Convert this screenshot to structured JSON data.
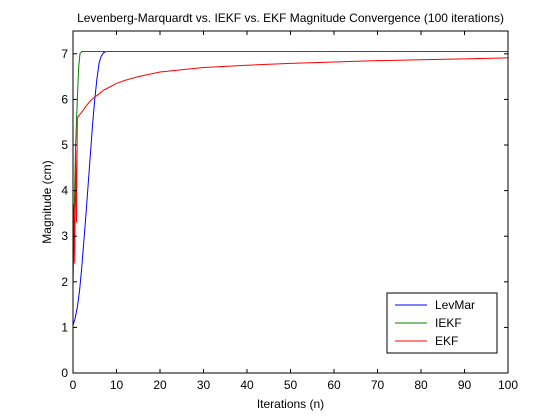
{
  "chart_data": {
    "type": "line",
    "title": "Levenberg-Marquardt vs. IEKF vs. EKF Magnitude Convergence (100 iterations)",
    "xlabel": "Iterations (n)",
    "ylabel": "Magnitude (cm)",
    "xlim": [
      0,
      100
    ],
    "ylim": [
      0,
      7.5
    ],
    "xticks": [
      0,
      10,
      20,
      30,
      40,
      50,
      60,
      70,
      80,
      90,
      100
    ],
    "yticks": [
      0,
      1,
      2,
      3,
      4,
      5,
      6,
      7
    ],
    "grid": false,
    "legend_position": "bottom-right",
    "series": [
      {
        "name": "LevMar",
        "color": "#0000ff",
        "x": [
          0,
          0.5,
          1,
          1.5,
          2,
          2.5,
          3,
          3.5,
          4,
          4.5,
          5,
          5.5,
          6,
          6.5,
          7,
          7.5,
          8,
          100
        ],
        "y": [
          1.05,
          1.2,
          1.45,
          1.8,
          2.3,
          2.9,
          3.5,
          4.15,
          4.8,
          5.45,
          6.0,
          6.45,
          6.8,
          6.95,
          7.02,
          7.05,
          7.05,
          7.05
        ]
      },
      {
        "name": "IEKF",
        "color": "#008000",
        "x": [
          0,
          0.3,
          0.6,
          1,
          1.3,
          1.6,
          2,
          100
        ],
        "y": [
          2.0,
          3.6,
          5.0,
          6.0,
          6.7,
          7.0,
          7.05,
          7.05
        ]
      },
      {
        "name": "EKF",
        "color": "#ff0000",
        "x": [
          0,
          0.2,
          0.4,
          0.6,
          0.8,
          1,
          2,
          3,
          4,
          5,
          6,
          7,
          8,
          10,
          12,
          15,
          20,
          25,
          30,
          40,
          50,
          60,
          70,
          80,
          90,
          100
        ],
        "y": [
          2.0,
          3.7,
          2.4,
          4.9,
          3.3,
          5.6,
          5.72,
          5.85,
          5.97,
          6.05,
          6.12,
          6.2,
          6.25,
          6.35,
          6.42,
          6.5,
          6.6,
          6.65,
          6.7,
          6.75,
          6.79,
          6.82,
          6.85,
          6.87,
          6.89,
          6.91
        ]
      }
    ]
  }
}
